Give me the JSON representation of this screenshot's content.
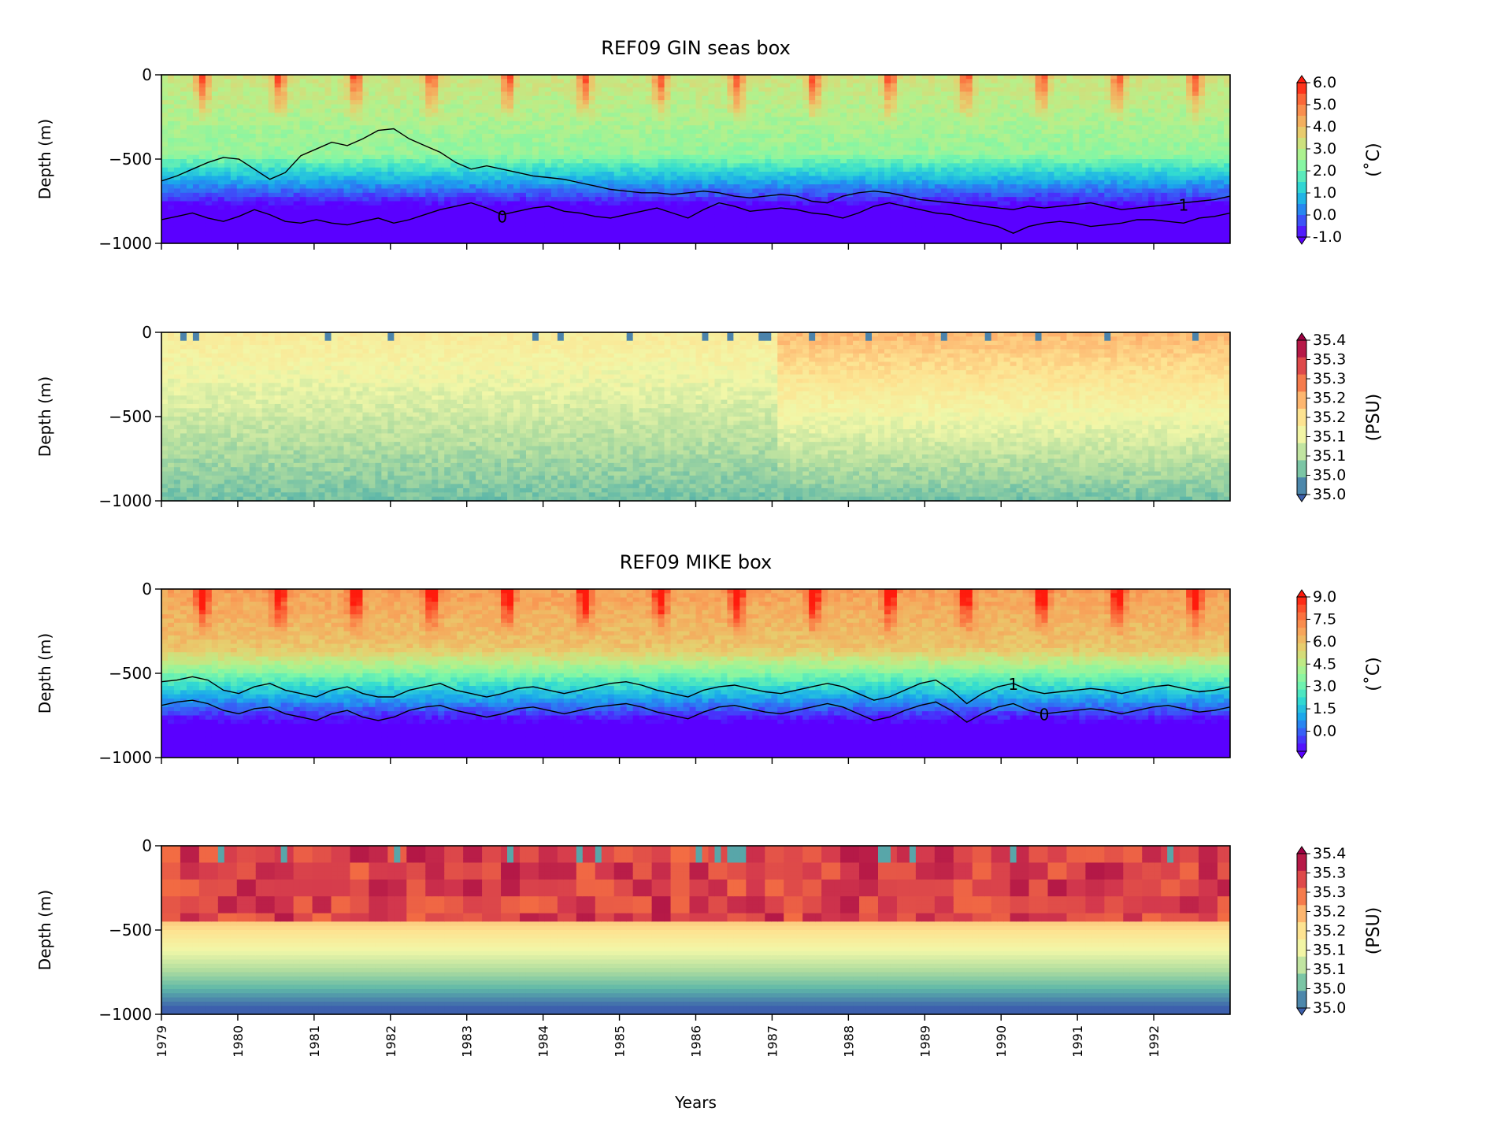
{
  "chart_data": [
    {
      "type": "heatmap",
      "title": "REF09 GIN seas box",
      "ylabel": "Depth (m)",
      "ylim": [
        -1000,
        0
      ],
      "yticks": [
        "0",
        "−500",
        "−1000"
      ],
      "colorbar": {
        "label": "(˚C)",
        "ticks": [
          "6.0",
          "5.0",
          "4.0",
          "3.0",
          "2.0",
          "1.0",
          "0.0",
          "-1.0"
        ],
        "palette": "rainbow"
      },
      "contours": [
        {
          "label": "0",
          "depths_m": [
            -860,
            -840,
            -820,
            -850,
            -870,
            -840,
            -800,
            -830,
            -870,
            -880,
            -860,
            -880,
            -890,
            -870,
            -850,
            -880,
            -860,
            -830,
            -800,
            -780,
            -760,
            -790,
            -830,
            -810,
            -790,
            -780,
            -810,
            -820,
            -840,
            -850,
            -830,
            -810,
            -790,
            -820,
            -850,
            -800,
            -760,
            -780,
            -810,
            -800,
            -790,
            -800,
            -820,
            -830,
            -850,
            -820,
            -780,
            -760,
            -780,
            -800,
            -820,
            -830,
            -860,
            -880,
            -900,
            -940,
            -900,
            -880,
            -870,
            -880,
            -900,
            -890,
            -880,
            -860,
            -860,
            -870,
            -880,
            -850,
            -840,
            -820
          ]
        },
        {
          "label": "1",
          "depths_m": [
            -630,
            -600,
            -560,
            -520,
            -490,
            -500,
            -560,
            -620,
            -580,
            -480,
            -440,
            -400,
            -420,
            -380,
            -330,
            -320,
            -380,
            -420,
            -460,
            -520,
            -560,
            -540,
            -560,
            -580,
            -600,
            -610,
            -620,
            -640,
            -660,
            -680,
            -690,
            -700,
            -700,
            -710,
            -700,
            -690,
            -700,
            -720,
            -730,
            -720,
            -710,
            -720,
            -750,
            -760,
            -720,
            -700,
            -690,
            -700,
            -720,
            -740,
            -750,
            -760,
            -770,
            -780,
            -790,
            -800,
            -780,
            -790,
            -780,
            -770,
            -760,
            -780,
            -800,
            -790,
            -780,
            -770,
            -760,
            -750,
            -740,
            -720
          ]
        }
      ]
    },
    {
      "type": "heatmap",
      "title": "",
      "ylabel": "Depth (m)",
      "ylim": [
        -1000,
        0
      ],
      "yticks": [
        "0",
        "−500",
        "−1000"
      ],
      "colorbar": {
        "label": "(PSU)",
        "ticks": [
          "35.4",
          "35.3",
          "35.3",
          "35.2",
          "35.2",
          "35.1",
          "35.1",
          "35.0",
          "35.0"
        ],
        "palette": "spectral"
      }
    },
    {
      "type": "heatmap",
      "title": "REF09 MIKE box",
      "ylabel": "Depth (m)",
      "ylim": [
        -1000,
        0
      ],
      "yticks": [
        "0",
        "−500",
        "−1000"
      ],
      "colorbar": {
        "label": "(˚C)",
        "ticks": [
          "9.0",
          "7.5",
          "6.0",
          "4.5",
          "3.0",
          "1.5",
          "0.0"
        ],
        "palette": "rainbow"
      },
      "contours": [
        {
          "label": "1",
          "depths_m": [
            -550,
            -540,
            -520,
            -540,
            -600,
            -620,
            -580,
            -560,
            -600,
            -620,
            -640,
            -600,
            -580,
            -620,
            -640,
            -640,
            -600,
            -580,
            -560,
            -600,
            -620,
            -640,
            -620,
            -590,
            -580,
            -600,
            -620,
            -600,
            -580,
            -560,
            -550,
            -570,
            -600,
            -620,
            -640,
            -600,
            -580,
            -570,
            -590,
            -610,
            -620,
            -600,
            -580,
            -560,
            -580,
            -620,
            -660,
            -640,
            -600,
            -560,
            -540,
            -600,
            -680,
            -620,
            -580,
            -560,
            -600,
            -620,
            -610,
            -600,
            -590,
            -600,
            -620,
            -600,
            -580,
            -570,
            -590,
            -610,
            -600,
            -580
          ]
        },
        {
          "label": "0",
          "depths_m": [
            -690,
            -670,
            -660,
            -680,
            -720,
            -740,
            -710,
            -700,
            -740,
            -760,
            -780,
            -740,
            -720,
            -760,
            -780,
            -760,
            -720,
            -700,
            -690,
            -720,
            -740,
            -760,
            -740,
            -710,
            -700,
            -720,
            -740,
            -720,
            -700,
            -690,
            -680,
            -700,
            -730,
            -750,
            -770,
            -730,
            -700,
            -690,
            -710,
            -730,
            -740,
            -720,
            -700,
            -680,
            -700,
            -740,
            -780,
            -760,
            -720,
            -690,
            -670,
            -720,
            -790,
            -740,
            -700,
            -680,
            -720,
            -740,
            -730,
            -720,
            -710,
            -720,
            -740,
            -720,
            -700,
            -690,
            -710,
            -730,
            -720,
            -700
          ]
        }
      ]
    },
    {
      "type": "heatmap",
      "title": "",
      "ylabel": "Depth (m)",
      "ylim": [
        -1000,
        0
      ],
      "yticks": [
        "0",
        "−500",
        "−1000"
      ],
      "colorbar": {
        "label": "(PSU)",
        "ticks": [
          "35.4",
          "35.3",
          "35.3",
          "35.2",
          "35.2",
          "35.1",
          "35.1",
          "35.0",
          "35.0"
        ],
        "palette": "spectral"
      }
    }
  ],
  "x_axis": {
    "label": "Years",
    "ticks": [
      "1979",
      "1980",
      "1981",
      "1982",
      "1983",
      "1984",
      "1985",
      "1986",
      "1987",
      "1988",
      "1989",
      "1990",
      "1991",
      "1992"
    ],
    "range": [
      1979,
      1993
    ]
  },
  "colors": {
    "rainbow": [
      "#5a00ff",
      "#3b56f7",
      "#1aa7ec",
      "#33dcd0",
      "#7cf7a8",
      "#b7f08a",
      "#e6d06f",
      "#f7a45a",
      "#fb6b3b",
      "#ff1a0d"
    ],
    "spectral": [
      "#3d60ad",
      "#5fb8a8",
      "#b3de9f",
      "#f1f7a8",
      "#fde391",
      "#fdb06b",
      "#f36c43",
      "#d3384d",
      "#9e0142"
    ]
  }
}
